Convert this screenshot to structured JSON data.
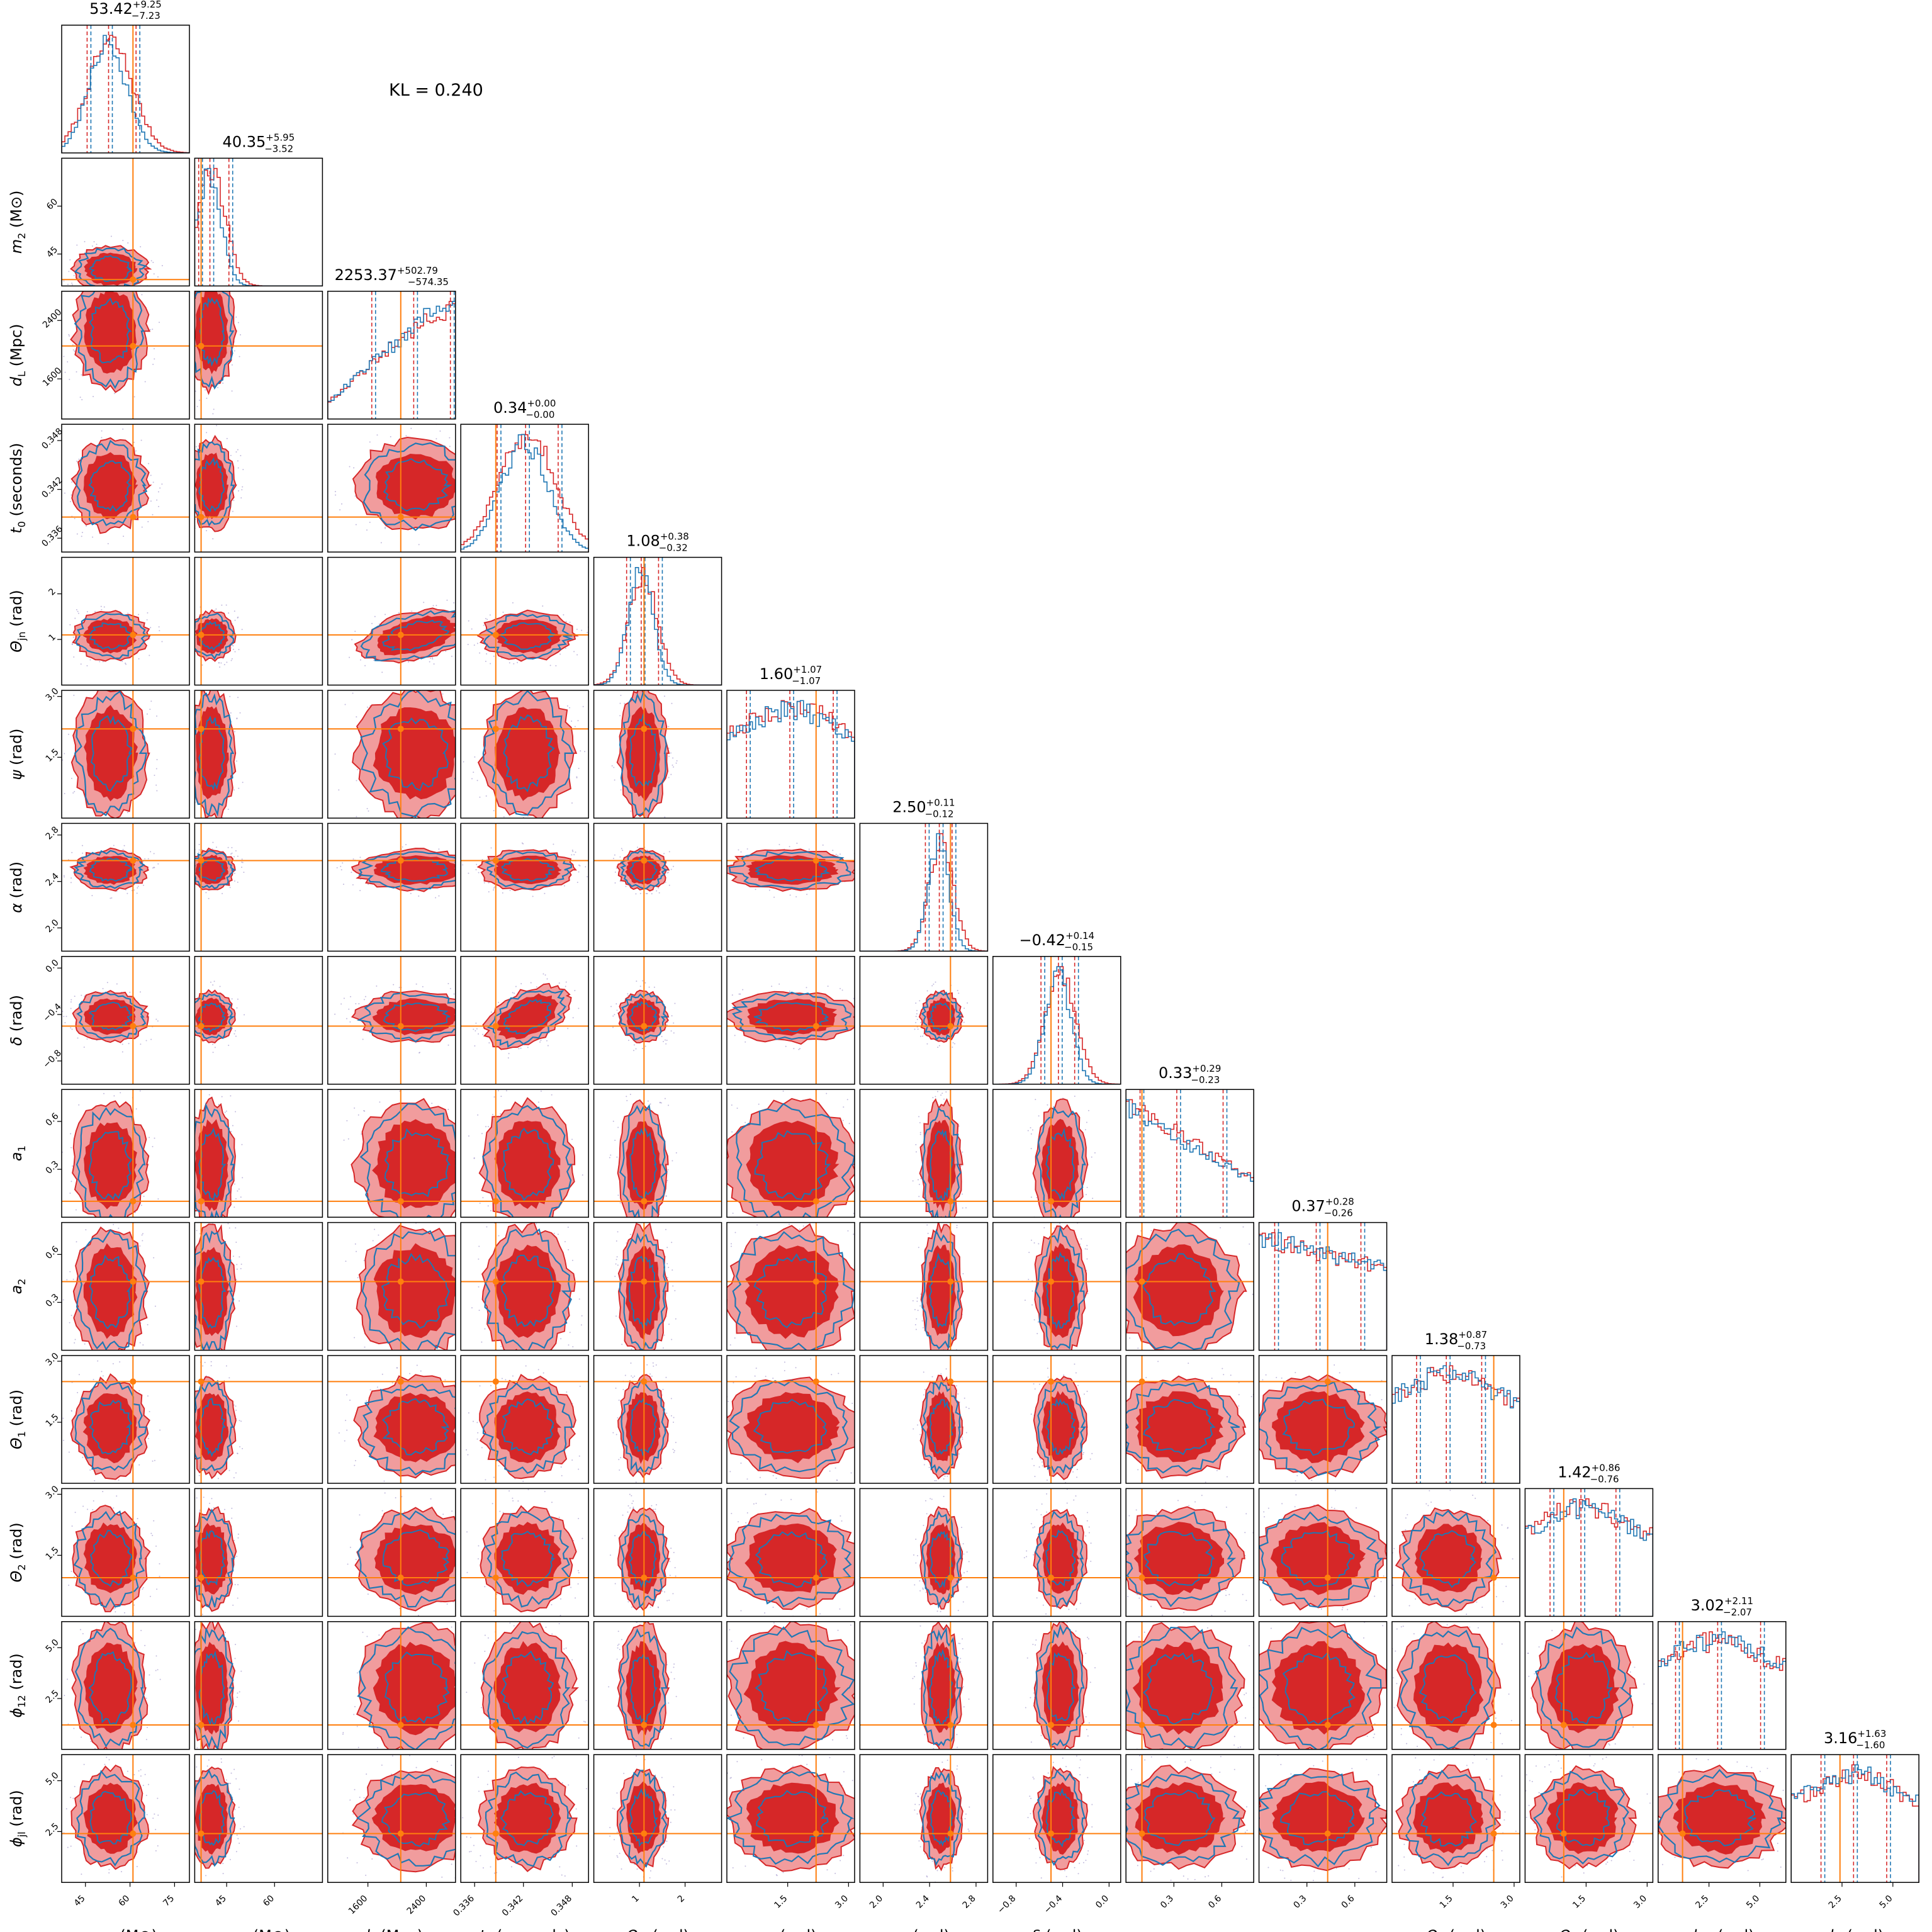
{
  "annotation": "KL = 0.240",
  "colors": {
    "series_a": "#d62728",
    "series_a_light": "#f19c9d",
    "series_b": "#1f77b4",
    "truth": "#ff7f0e",
    "frame": "#000000"
  },
  "chart_data": {
    "type": "corner",
    "series": [
      {
        "color": "#d62728",
        "kind": "filled contours + step histogram"
      },
      {
        "color": "#1f77b4",
        "kind": "line contours + step histogram"
      }
    ],
    "truth_color": "#ff7f0e",
    "parameters": [
      {
        "id": "m1",
        "label_main": "m",
        "label_sub": "1",
        "label_unit": " (M⊙)",
        "median": "53.42",
        "plus": "+9.25",
        "minus": "−7.23",
        "range": [
          37,
          80
        ],
        "ticks": [
          "45",
          "60",
          "75"
        ],
        "tick_values": [
          45,
          60,
          75
        ],
        "truth": 61,
        "quantiles": [
          46.2,
          53.42,
          62.67
        ]
      },
      {
        "id": "m2",
        "label_main": "m",
        "label_sub": "2",
        "label_unit": " (M⊙)",
        "median": "40.35",
        "plus": "+5.95",
        "minus": "−3.52",
        "range": [
          35,
          75
        ],
        "ticks": [
          "45",
          "60"
        ],
        "tick_values": [
          45,
          60
        ],
        "truth": 37,
        "quantiles": [
          36.83,
          40.35,
          46.3
        ]
      },
      {
        "id": "dL",
        "label_main": "d",
        "label_sub": "L",
        "label_unit": " (Mpc)",
        "median": "2253.37",
        "plus": "+502.79",
        "minus": "−574.35",
        "range": [
          1050,
          2800
        ],
        "ticks": [
          "1600",
          "2400"
        ],
        "tick_values": [
          1600,
          2400
        ],
        "truth": 2050,
        "quantiles": [
          1679.02,
          2253.37,
          2756.16
        ]
      },
      {
        "id": "t0",
        "label_main": "t",
        "label_sub": "0",
        "label_unit": " (seconds)",
        "median": "0.34",
        "plus": "+0.00",
        "minus": "−0.00",
        "range": [
          0.3343,
          0.35
        ],
        "ticks": [
          "0.336",
          "0.342",
          "0.348"
        ],
        "tick_values": [
          0.336,
          0.342,
          0.348
        ],
        "truth": 0.3386,
        "quantiles": [
          0.339,
          0.3425,
          0.3465
        ]
      },
      {
        "id": "theta_jn",
        "label_main": "Θ",
        "label_sub": "jn",
        "label_unit": " (rad)",
        "median": "1.08",
        "plus": "+0.38",
        "minus": "−0.32",
        "range": [
          0,
          2.8
        ],
        "ticks": [
          "1",
          "2"
        ],
        "tick_values": [
          1,
          2
        ],
        "truth": 1.1,
        "quantiles": [
          0.76,
          1.08,
          1.46
        ]
      },
      {
        "id": "psi",
        "label_main": "ψ",
        "label_sub": "",
        "label_unit": " (rad)",
        "median": "1.60",
        "plus": "+1.07",
        "minus": "−1.07",
        "range": [
          0,
          3.15
        ],
        "ticks": [
          "1.5",
          "3.0"
        ],
        "tick_values": [
          1.5,
          3.0
        ],
        "truth": 2.2,
        "quantiles": [
          0.53,
          1.6,
          2.67
        ]
      },
      {
        "id": "alpha",
        "label_main": "α",
        "label_sub": "",
        "label_unit": " (rad)",
        "median": "2.50",
        "plus": "+0.11",
        "minus": "−0.12",
        "range": [
          1.8,
          2.9
        ],
        "ticks": [
          "2.0",
          "2.4",
          "2.8"
        ],
        "tick_values": [
          2.0,
          2.4,
          2.8
        ],
        "truth": 2.58,
        "quantiles": [
          2.38,
          2.5,
          2.61
        ]
      },
      {
        "id": "delta",
        "label_main": "δ",
        "label_sub": "",
        "label_unit": " (rad)",
        "median": "−0.42",
        "plus": "+0.14",
        "minus": "−0.15",
        "range": [
          -1.0,
          0.1
        ],
        "ticks": [
          "−0.8",
          "−0.4",
          "0.0"
        ],
        "tick_values": [
          -0.8,
          -0.4,
          0.0
        ],
        "truth": -0.5,
        "quantiles": [
          -0.57,
          -0.42,
          -0.28
        ]
      },
      {
        "id": "a1",
        "label_main": "a",
        "label_sub": "1",
        "label_unit": "",
        "median": "0.33",
        "plus": "+0.29",
        "minus": "−0.23",
        "range": [
          0,
          0.8
        ],
        "ticks": [
          "0.3",
          "0.6"
        ],
        "tick_values": [
          0.3,
          0.6
        ],
        "truth": 0.1,
        "quantiles": [
          0.1,
          0.33,
          0.62
        ]
      },
      {
        "id": "a2",
        "label_main": "a",
        "label_sub": "2",
        "label_unit": "",
        "median": "0.37",
        "plus": "+0.28",
        "minus": "−0.26",
        "range": [
          0,
          0.8
        ],
        "ticks": [
          "0.3",
          "0.6"
        ],
        "tick_values": [
          0.3,
          0.6
        ],
        "truth": 0.43,
        "quantiles": [
          0.11,
          0.37,
          0.65
        ]
      },
      {
        "id": "theta1",
        "label_main": "Θ",
        "label_sub": "1",
        "label_unit": " (rad)",
        "median": "1.38",
        "plus": "+0.87",
        "minus": "−0.73",
        "range": [
          0,
          3.14
        ],
        "ticks": [
          "1.5",
          "3.0"
        ],
        "tick_values": [
          1.5,
          3.0
        ],
        "truth": 2.5,
        "quantiles": [
          0.65,
          1.38,
          2.25
        ]
      },
      {
        "id": "theta2",
        "label_main": "Θ",
        "label_sub": "2",
        "label_unit": " (rad)",
        "median": "1.42",
        "plus": "+0.86",
        "minus": "−0.76",
        "range": [
          0,
          3.14
        ],
        "ticks": [
          "1.5",
          "3.0"
        ],
        "tick_values": [
          1.5,
          3.0
        ],
        "truth": 0.95,
        "quantiles": [
          0.66,
          1.42,
          2.28
        ]
      },
      {
        "id": "phi12",
        "label_main": "ϕ",
        "label_sub": "12",
        "label_unit": " (rad)",
        "median": "3.02",
        "plus": "+2.11",
        "minus": "−2.07",
        "range": [
          0,
          6.28
        ],
        "ticks": [
          "2.5",
          "5.0"
        ],
        "tick_values": [
          2.5,
          5.0
        ],
        "truth": 1.2,
        "quantiles": [
          0.95,
          3.02,
          5.13
        ]
      },
      {
        "id": "phijl",
        "label_main": "ϕ",
        "label_sub": "jl",
        "label_unit": " (rad)",
        "median": "3.16",
        "plus": "+1.63",
        "minus": "−1.60",
        "range": [
          0,
          6.28
        ],
        "ticks": [
          "2.5",
          "5.0"
        ],
        "tick_values": [
          2.5,
          5.0
        ],
        "truth": 2.4,
        "quantiles": [
          1.56,
          3.16,
          4.79
        ]
      }
    ]
  }
}
